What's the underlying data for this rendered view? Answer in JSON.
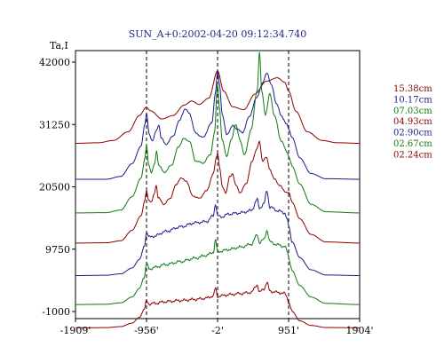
{
  "chart_data": {
    "type": "line",
    "title": "SUN_A+0:2002-04-20 09:12:34.740",
    "ylabel": "Ta,I",
    "xlabel": "",
    "xlim": [
      -1909,
      1904
    ],
    "ylim": [
      -1000,
      42000
    ],
    "x_ticks": [
      {
        "value": -1909,
        "label": "-1909'"
      },
      {
        "value": -956,
        "label": "-956'"
      },
      {
        "value": -2,
        "label": "-2'"
      },
      {
        "value": 951,
        "label": "951'"
      },
      {
        "value": 1904,
        "label": "1904'"
      }
    ],
    "y_ticks": [
      {
        "value": 42000,
        "label": "42000"
      },
      {
        "value": 31250,
        "label": "31250"
      },
      {
        "value": 20500,
        "label": "20500"
      },
      {
        "value": 9750,
        "label": "9750"
      },
      {
        "value": -1000,
        "label": "-1000"
      }
    ],
    "vertical_markers": [
      -956,
      -2,
      951
    ],
    "grid": false,
    "legend_position": "right",
    "series": [
      {
        "name": "15.38cm",
        "color": "#8b0000",
        "kind": "smooth",
        "base": 28000,
        "peak": 40500,
        "points": [
          [
            -1909,
            28000
          ],
          [
            -1600,
            28100
          ],
          [
            -1400,
            28500
          ],
          [
            -1200,
            30000
          ],
          [
            -1050,
            32800
          ],
          [
            -960,
            34200
          ],
          [
            -900,
            33600
          ],
          [
            -750,
            32200
          ],
          [
            -600,
            32800
          ],
          [
            -450,
            34600
          ],
          [
            -350,
            35300
          ],
          [
            -250,
            34700
          ],
          [
            -120,
            35800
          ],
          [
            -2,
            40500
          ],
          [
            80,
            37000
          ],
          [
            200,
            34300
          ],
          [
            350,
            33800
          ],
          [
            500,
            36500
          ],
          [
            650,
            38700
          ],
          [
            800,
            39300
          ],
          [
            900,
            38500
          ],
          [
            951,
            37000
          ],
          [
            1050,
            33500
          ],
          [
            1200,
            30000
          ],
          [
            1400,
            28500
          ],
          [
            1600,
            28100
          ],
          [
            1904,
            28000
          ]
        ]
      },
      {
        "name": "10.17cm",
        "color": "#1a1a8c",
        "kind": "peaky",
        "base": 21800,
        "peak": 40400,
        "points": [
          [
            -1909,
            21800
          ],
          [
            -1500,
            21800
          ],
          [
            -1300,
            22300
          ],
          [
            -1150,
            24500
          ],
          [
            -1030,
            27500
          ],
          [
            -975,
            31500
          ],
          [
            -956,
            33200
          ],
          [
            -920,
            29500
          ],
          [
            -880,
            28500
          ],
          [
            -820,
            30200
          ],
          [
            -790,
            31200
          ],
          [
            -760,
            29000
          ],
          [
            -700,
            27800
          ],
          [
            -600,
            29200
          ],
          [
            -520,
            31800
          ],
          [
            -440,
            33900
          ],
          [
            -380,
            33200
          ],
          [
            -300,
            29800
          ],
          [
            -200,
            29000
          ],
          [
            -80,
            31500
          ],
          [
            -30,
            36800
          ],
          [
            -2,
            40400
          ],
          [
            25,
            38000
          ],
          [
            60,
            33000
          ],
          [
            120,
            29500
          ],
          [
            200,
            31000
          ],
          [
            260,
            30500
          ],
          [
            330,
            29800
          ],
          [
            420,
            32500
          ],
          [
            520,
            35800
          ],
          [
            600,
            38300
          ],
          [
            660,
            40200
          ],
          [
            720,
            38000
          ],
          [
            790,
            34800
          ],
          [
            850,
            32800
          ],
          [
            930,
            31200
          ],
          [
            951,
            30500
          ],
          [
            1000,
            29000
          ],
          [
            1100,
            25500
          ],
          [
            1250,
            22800
          ],
          [
            1450,
            21900
          ],
          [
            1904,
            21800
          ]
        ]
      },
      {
        "name": "07.03cm",
        "color": "#0f7a0f",
        "kind": "peaky",
        "base": 16000,
        "peak": 43800,
        "points": [
          [
            -1909,
            16000
          ],
          [
            -1500,
            16050
          ],
          [
            -1300,
            16500
          ],
          [
            -1150,
            18800
          ],
          [
            -1030,
            22000
          ],
          [
            -975,
            25500
          ],
          [
            -956,
            27800
          ],
          [
            -930,
            24500
          ],
          [
            -890,
            23000
          ],
          [
            -845,
            24500
          ],
          [
            -820,
            26800
          ],
          [
            -795,
            24300
          ],
          [
            -720,
            23000
          ],
          [
            -620,
            24200
          ],
          [
            -530,
            27300
          ],
          [
            -460,
            28800
          ],
          [
            -380,
            28400
          ],
          [
            -300,
            25000
          ],
          [
            -200,
            24600
          ],
          [
            -100,
            26000
          ],
          [
            -40,
            30000
          ],
          [
            -10,
            37200
          ],
          [
            -2,
            38200
          ],
          [
            20,
            34500
          ],
          [
            60,
            28500
          ],
          [
            120,
            25800
          ],
          [
            180,
            28500
          ],
          [
            240,
            31300
          ],
          [
            300,
            28500
          ],
          [
            360,
            26000
          ],
          [
            450,
            30500
          ],
          [
            530,
            37200
          ],
          [
            560,
            43800
          ],
          [
            590,
            37000
          ],
          [
            640,
            33000
          ],
          [
            700,
            36500
          ],
          [
            760,
            32800
          ],
          [
            850,
            28500
          ],
          [
            930,
            26500
          ],
          [
            951,
            25800
          ],
          [
            1000,
            24000
          ],
          [
            1100,
            21000
          ],
          [
            1250,
            17500
          ],
          [
            1450,
            16200
          ],
          [
            1904,
            16000
          ]
        ]
      },
      {
        "name": "04.93cm",
        "color": "#8b0000",
        "kind": "peaky",
        "base": 10800,
        "peak": 28200,
        "points": [
          [
            -1909,
            10800
          ],
          [
            -1500,
            10850
          ],
          [
            -1300,
            11200
          ],
          [
            -1150,
            13000
          ],
          [
            -1030,
            15500
          ],
          [
            -975,
            18200
          ],
          [
            -956,
            20000
          ],
          [
            -930,
            18300
          ],
          [
            -890,
            17800
          ],
          [
            -855,
            19200
          ],
          [
            -825,
            20800
          ],
          [
            -800,
            18600
          ],
          [
            -720,
            17500
          ],
          [
            -640,
            18500
          ],
          [
            -560,
            20800
          ],
          [
            -500,
            22000
          ],
          [
            -420,
            21500
          ],
          [
            -340,
            19000
          ],
          [
            -250,
            18500
          ],
          [
            -150,
            19800
          ],
          [
            -60,
            22700
          ],
          [
            -20,
            25500
          ],
          [
            -2,
            26500
          ],
          [
            25,
            23800
          ],
          [
            60,
            20500
          ],
          [
            110,
            19500
          ],
          [
            160,
            22200
          ],
          [
            200,
            22800
          ],
          [
            240,
            20800
          ],
          [
            300,
            19500
          ],
          [
            380,
            21000
          ],
          [
            460,
            24800
          ],
          [
            520,
            27000
          ],
          [
            560,
            28200
          ],
          [
            600,
            25000
          ],
          [
            650,
            25600
          ],
          [
            700,
            23500
          ],
          [
            760,
            21800
          ],
          [
            830,
            20800
          ],
          [
            900,
            19700
          ],
          [
            951,
            19500
          ],
          [
            1000,
            17800
          ],
          [
            1100,
            15000
          ],
          [
            1250,
            12300
          ],
          [
            1450,
            11000
          ],
          [
            1904,
            10800
          ]
        ]
      },
      {
        "name": "02.90cm",
        "color": "#1a1a8c",
        "kind": "noisy",
        "base": 5200,
        "peak": 15800,
        "points": [
          [
            -1909,
            5200
          ],
          [
            -1500,
            5250
          ],
          [
            -1300,
            5500
          ],
          [
            -1150,
            6500
          ],
          [
            -1050,
            8000
          ],
          [
            -985,
            10200
          ],
          [
            -956,
            12700
          ],
          [
            -920,
            11800
          ],
          [
            -850,
            12000
          ],
          [
            -700,
            12800
          ],
          [
            -500,
            13600
          ],
          [
            -300,
            14300
          ],
          [
            -150,
            14500
          ],
          [
            -60,
            15500
          ],
          [
            -30,
            17600
          ],
          [
            -2,
            15500
          ],
          [
            40,
            15300
          ],
          [
            150,
            15800
          ],
          [
            300,
            16000
          ],
          [
            450,
            16400
          ],
          [
            530,
            18300
          ],
          [
            560,
            16800
          ],
          [
            620,
            17600
          ],
          [
            660,
            19800
          ],
          [
            700,
            17000
          ],
          [
            800,
            16400
          ],
          [
            900,
            16000
          ],
          [
            935,
            14800
          ],
          [
            951,
            13700
          ],
          [
            1000,
            11000
          ],
          [
            1100,
            8300
          ],
          [
            1250,
            6200
          ],
          [
            1450,
            5300
          ],
          [
            1904,
            5200
          ]
        ]
      },
      {
        "name": "02.67cm",
        "color": "#0f7a0f",
        "kind": "noisy",
        "base": 200,
        "peak": 10500,
        "points": [
          [
            -1909,
            200
          ],
          [
            -1500,
            250
          ],
          [
            -1300,
            500
          ],
          [
            -1150,
            1500
          ],
          [
            -1050,
            3000
          ],
          [
            -985,
            5000
          ],
          [
            -956,
            7300
          ],
          [
            -920,
            6300
          ],
          [
            -850,
            6600
          ],
          [
            -700,
            7100
          ],
          [
            -500,
            7600
          ],
          [
            -300,
            8200
          ],
          [
            -150,
            8700
          ],
          [
            -60,
            9200
          ],
          [
            -30,
            11300
          ],
          [
            -2,
            9300
          ],
          [
            40,
            9400
          ],
          [
            150,
            9700
          ],
          [
            300,
            10100
          ],
          [
            450,
            10600
          ],
          [
            530,
            12200
          ],
          [
            560,
            10900
          ],
          [
            620,
            11400
          ],
          [
            660,
            13000
          ],
          [
            700,
            11000
          ],
          [
            800,
            10500
          ],
          [
            900,
            10200
          ],
          [
            935,
            9300
          ],
          [
            951,
            8300
          ],
          [
            1000,
            6000
          ],
          [
            1100,
            3500
          ],
          [
            1250,
            1500
          ],
          [
            1450,
            400
          ],
          [
            1904,
            200
          ]
        ]
      },
      {
        "name": "02.24cm",
        "color": "#8b0000",
        "kind": "noisy",
        "base": -3800,
        "peak": 3600,
        "points": [
          [
            -1909,
            -3800
          ],
          [
            -1500,
            -3780
          ],
          [
            -1300,
            -3600
          ],
          [
            -1150,
            -3000
          ],
          [
            -1050,
            -2000
          ],
          [
            -985,
            -600
          ],
          [
            -956,
            800
          ],
          [
            -920,
            300
          ],
          [
            -850,
            400
          ],
          [
            -700,
            700
          ],
          [
            -500,
            900
          ],
          [
            -300,
            1100
          ],
          [
            -150,
            1300
          ],
          [
            -60,
            1700
          ],
          [
            -30,
            3000
          ],
          [
            -2,
            1600
          ],
          [
            40,
            1700
          ],
          [
            150,
            1900
          ],
          [
            300,
            2100
          ],
          [
            450,
            2300
          ],
          [
            530,
            3600
          ],
          [
            560,
            2300
          ],
          [
            620,
            2900
          ],
          [
            660,
            4000
          ],
          [
            700,
            2500
          ],
          [
            800,
            2300
          ],
          [
            900,
            2100
          ],
          [
            935,
            1400
          ],
          [
            951,
            500
          ],
          [
            1000,
            -1000
          ],
          [
            1100,
            -2600
          ],
          [
            1250,
            -3400
          ],
          [
            1450,
            -3760
          ],
          [
            1904,
            -3800
          ]
        ]
      }
    ]
  }
}
